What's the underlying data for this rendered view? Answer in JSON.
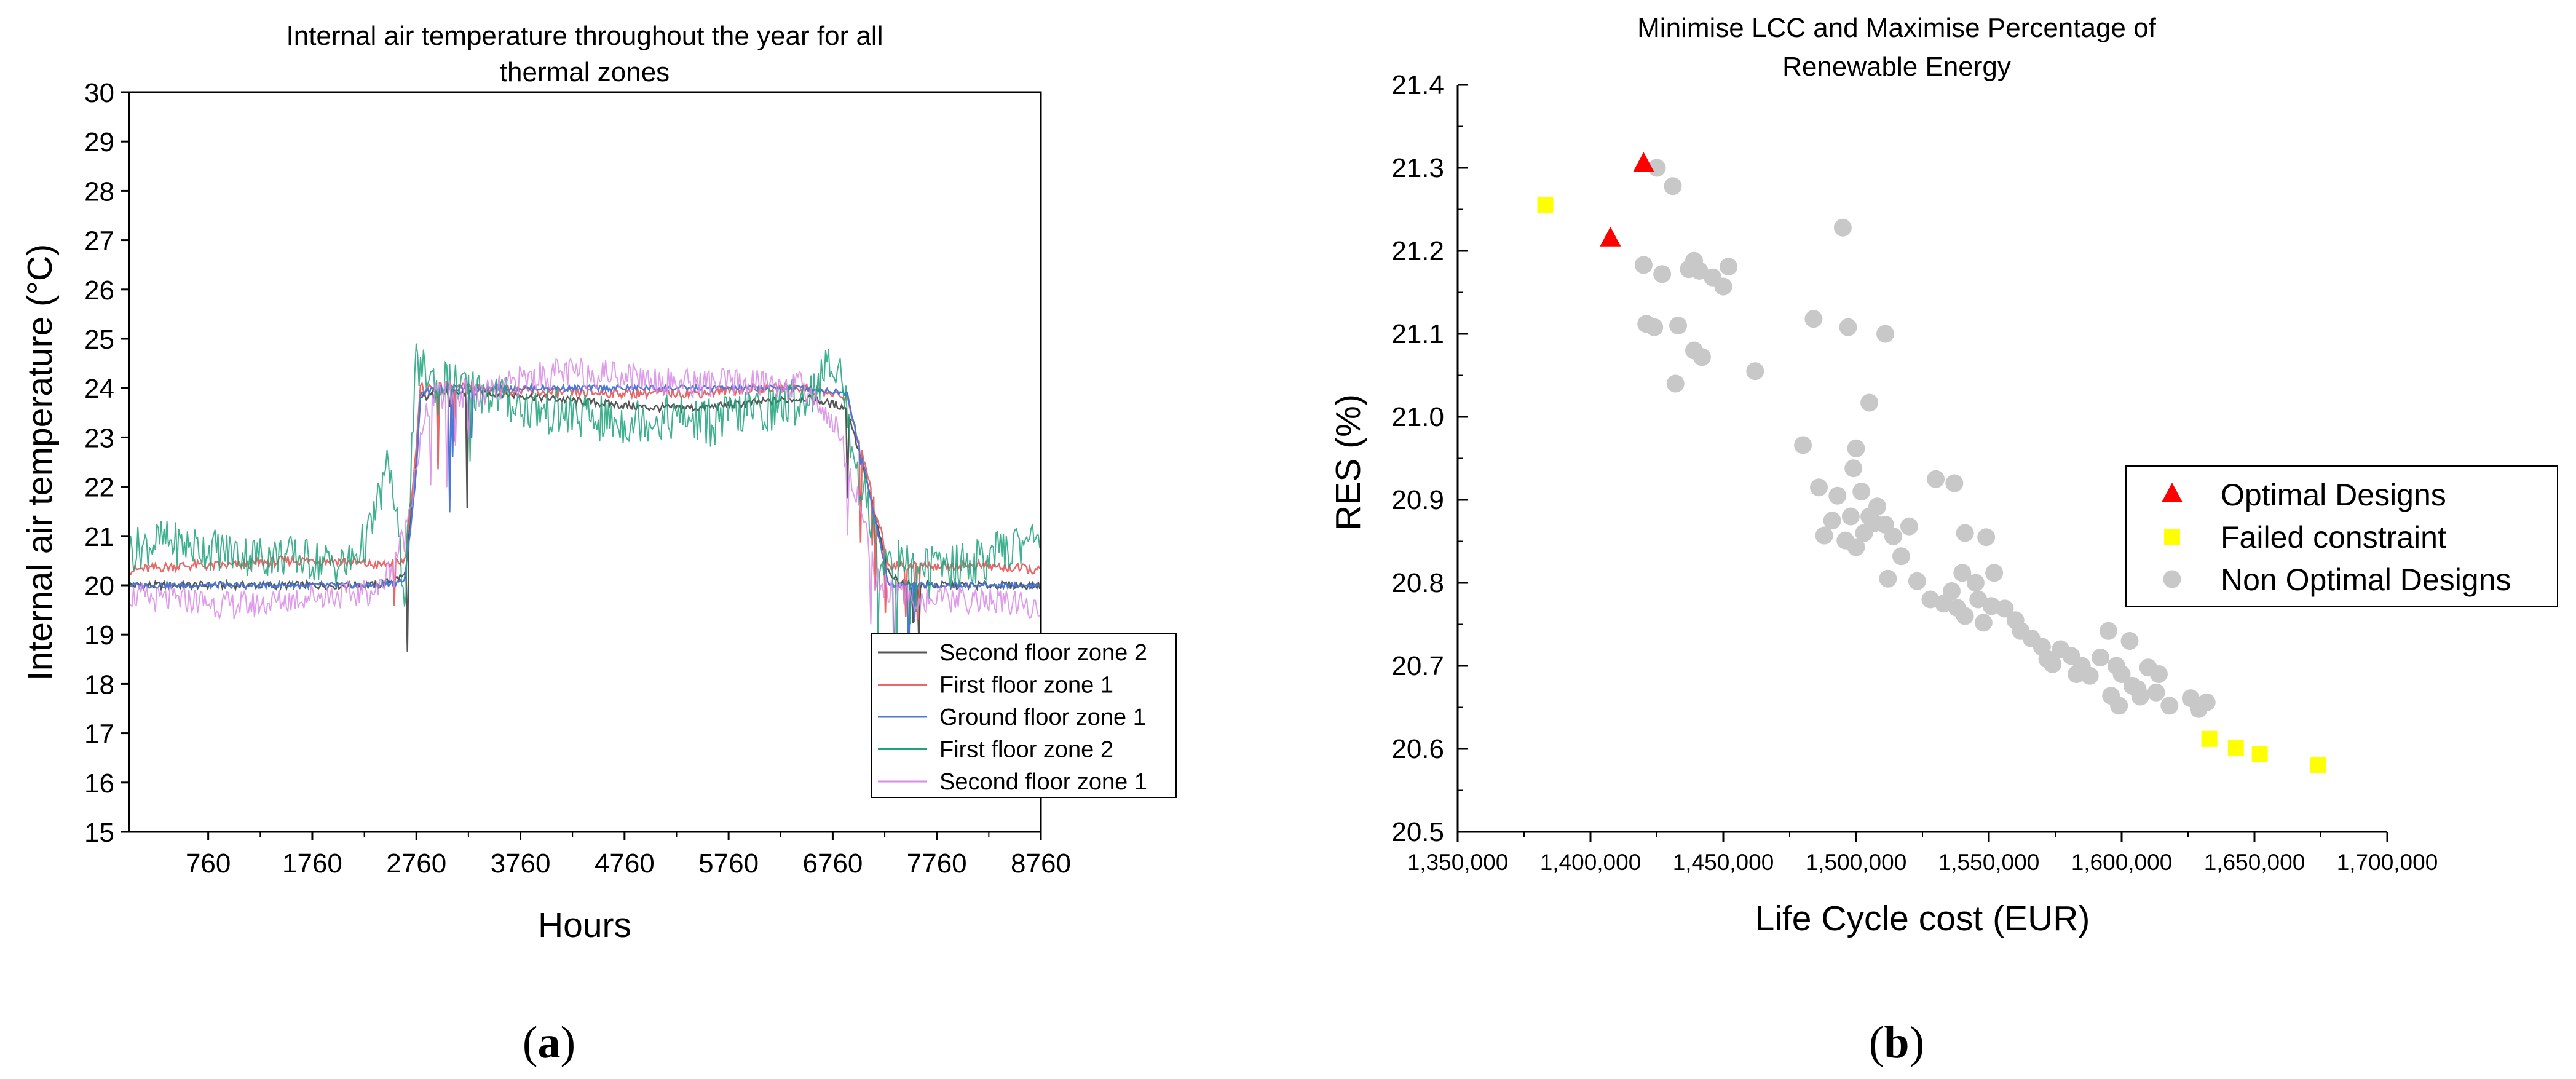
{
  "panels": {
    "a": {
      "label_open": "(",
      "label_letter": "a",
      "label_close": ")"
    },
    "b": {
      "label_open": "(",
      "label_letter": "b",
      "label_close": ")"
    }
  },
  "chart_data": [
    {
      "type": "line",
      "title_line1": "Internal air temperature throughout the year for all",
      "title_line2": "thermal zones",
      "xlabel": "Hours",
      "ylabel": "Internal air temperature (°C)",
      "xlim": [
        0,
        8760
      ],
      "ylim": [
        15,
        30
      ],
      "xticks": [
        760,
        1760,
        2760,
        3760,
        4760,
        5760,
        6760,
        7760,
        8760
      ],
      "xtick_labels": [
        "760",
        "1760",
        "2760",
        "3760",
        "4760",
        "5760",
        "6760",
        "7760",
        "8760"
      ],
      "yticks": [
        15,
        16,
        17,
        18,
        19,
        20,
        21,
        22,
        23,
        24,
        25,
        26,
        27,
        28,
        29,
        30
      ],
      "ytick_labels": [
        "15",
        "16",
        "17",
        "18",
        "19",
        "20",
        "21",
        "22",
        "23",
        "24",
        "25",
        "26",
        "27",
        "28",
        "29",
        "30"
      ],
      "legend_position": "lower-right",
      "series": [
        {
          "name": "Second floor zone 2",
          "color": "#555555",
          "x": [
            0,
            500,
            1000,
            1500,
            2000,
            2400,
            2650,
            2760,
            2800,
            3000,
            3500,
            4000,
            4500,
            5000,
            5500,
            6000,
            6500,
            6900,
            7100,
            7300,
            7500,
            7800,
            8200,
            8760
          ],
          "y": [
            20.0,
            20.0,
            20.0,
            20.0,
            20.0,
            20.0,
            20.2,
            22.5,
            23.8,
            23.9,
            23.9,
            23.8,
            23.7,
            23.6,
            23.6,
            23.7,
            23.8,
            23.6,
            22.0,
            20.2,
            20.0,
            20.0,
            20.0,
            20.0
          ]
        },
        {
          "name": "First floor zone 1",
          "color": "#e8686a",
          "x": [
            0,
            500,
            1000,
            1500,
            2000,
            2400,
            2650,
            2760,
            2800,
            3000,
            3500,
            4000,
            4500,
            5000,
            5500,
            6000,
            6500,
            6900,
            7100,
            7300,
            7500,
            7800,
            8200,
            8760
          ],
          "y": [
            20.3,
            20.4,
            20.4,
            20.5,
            20.5,
            20.4,
            20.5,
            22.8,
            24.0,
            24.0,
            24.0,
            23.9,
            23.9,
            23.9,
            23.9,
            24.0,
            24.0,
            23.8,
            22.2,
            20.4,
            20.4,
            20.4,
            20.4,
            20.3
          ]
        },
        {
          "name": "Ground floor zone 1",
          "color": "#4a78d6",
          "x": [
            0,
            500,
            1000,
            1500,
            2000,
            2400,
            2650,
            2760,
            2800,
            3000,
            3500,
            4000,
            4500,
            5000,
            5500,
            6000,
            6500,
            6900,
            7100,
            7300,
            7500,
            7800,
            8200,
            8760
          ],
          "y": [
            20.0,
            20.0,
            20.0,
            20.0,
            20.0,
            20.0,
            20.1,
            22.3,
            23.9,
            24.0,
            24.0,
            24.0,
            24.0,
            24.0,
            24.0,
            24.0,
            24.0,
            23.9,
            22.0,
            20.0,
            20.0,
            20.0,
            20.0,
            20.0
          ]
        },
        {
          "name": "First floor zone 2",
          "color": "#1fa37a",
          "x": [
            0,
            300,
            600,
            900,
            1200,
            1500,
            1800,
            2100,
            2300,
            2500,
            2650,
            2760,
            2900,
            3200,
            3500,
            3800,
            4100,
            4400,
            4700,
            5000,
            5300,
            5600,
            5900,
            6200,
            6500,
            6800,
            7000,
            7200,
            7400,
            7600,
            7900,
            8200,
            8500,
            8760
          ],
          "y": [
            20.7,
            20.9,
            20.8,
            20.7,
            20.6,
            20.6,
            20.5,
            20.4,
            21.0,
            22.5,
            19.8,
            24.5,
            24.2,
            24.0,
            23.9,
            23.6,
            23.5,
            23.4,
            23.3,
            23.4,
            23.4,
            23.3,
            23.5,
            23.6,
            23.8,
            24.6,
            22.5,
            20.6,
            20.5,
            20.4,
            20.4,
            20.5,
            20.8,
            21.0
          ]
        },
        {
          "name": "Second floor zone 1",
          "color": "#d98be8",
          "x": [
            0,
            300,
            600,
            900,
            1200,
            1500,
            1800,
            2100,
            2400,
            2650,
            2760,
            2900,
            3200,
            3500,
            3800,
            4100,
            4400,
            4700,
            5000,
            5300,
            5600,
            5900,
            6200,
            6500,
            6800,
            7000,
            7200,
            7400,
            7600,
            7900,
            8200,
            8500,
            8760
          ],
          "y": [
            19.8,
            19.7,
            19.7,
            19.6,
            19.6,
            19.7,
            19.8,
            19.8,
            19.9,
            21.0,
            22.5,
            23.8,
            23.9,
            23.9,
            24.2,
            24.3,
            24.3,
            24.3,
            24.2,
            24.1,
            24.1,
            24.1,
            24.1,
            24.0,
            23.2,
            21.8,
            20.0,
            19.8,
            19.7,
            19.7,
            19.7,
            19.6,
            19.6
          ]
        }
      ]
    },
    {
      "type": "scatter",
      "title_line1": "Minimise LCC and Maximise Percentage of",
      "title_line2": "Renewable Energy",
      "xlabel": "Life Cycle cost (EUR)",
      "ylabel": "RES (%)",
      "xlim": [
        1350000,
        1700000
      ],
      "ylim": [
        20.5,
        21.4
      ],
      "xticks": [
        1350000,
        1400000,
        1450000,
        1500000,
        1550000,
        1600000,
        1650000,
        1700000
      ],
      "xtick_labels": [
        "1,350,000",
        "1,400,000",
        "1,450,000",
        "1,500,000",
        "1,550,000",
        "1,600,000",
        "1,650,000",
        "1,700,000"
      ],
      "yticks": [
        20.5,
        20.6,
        20.7,
        20.8,
        20.9,
        21.0,
        21.1,
        21.2,
        21.3,
        21.4
      ],
      "ytick_labels": [
        "20.5",
        "20.6",
        "20.7",
        "20.8",
        "20.9",
        "21.0",
        "21.1",
        "21.2",
        "21.3",
        "21.4"
      ],
      "legend_position": "right",
      "series": [
        {
          "name": "Optimal Designs",
          "color": "#ff0000",
          "marker": "triangle",
          "x": [
            1420000,
            1407500
          ],
          "y": [
            21.305,
            21.215
          ]
        },
        {
          "name": "Failed constraint",
          "color": "#ffff00",
          "marker": "square",
          "x": [
            1383000,
            1633000,
            1643000,
            1652000,
            1674000
          ],
          "y": [
            21.255,
            20.612,
            20.601,
            20.594,
            20.58
          ]
        },
        {
          "name": "Non Optimal Designs",
          "color": "#c8c8c8",
          "marker": "circle",
          "x": [
            1425000,
            1431000,
            1420000,
            1427000,
            1437000,
            1439000,
            1441000,
            1446000,
            1450000,
            1452000,
            1421000,
            1424000,
            1433000,
            1439000,
            1442000,
            1432000,
            1462000,
            1495000,
            1484000,
            1497000,
            1511000,
            1505000,
            1480000,
            1486000,
            1491000,
            1493000,
            1498000,
            1500000,
            1499000,
            1502000,
            1505000,
            1508000,
            1511000,
            1488000,
            1496000,
            1500000,
            1503000,
            1507000,
            1512000,
            1514000,
            1517000,
            1520000,
            1530000,
            1537000,
            1541000,
            1549000,
            1552000,
            1540000,
            1545000,
            1523000,
            1528000,
            1533000,
            1536000,
            1538000,
            1541000,
            1546000,
            1548000,
            1551000,
            1556000,
            1560000,
            1562000,
            1566000,
            1570000,
            1572000,
            1577000,
            1581000,
            1585000,
            1588000,
            1592000,
            1595000,
            1598000,
            1600000,
            1603000,
            1606000,
            1610000,
            1614000,
            1618000,
            1626000,
            1629000,
            1632000,
            1596000,
            1599000,
            1604000,
            1607000,
            1613000,
            1583000,
            1574000
          ],
          "y": [
            21.3,
            21.278,
            21.183,
            21.172,
            21.178,
            21.188,
            21.176,
            21.168,
            21.157,
            21.181,
            21.112,
            21.108,
            21.11,
            21.08,
            21.072,
            21.04,
            21.055,
            21.228,
            21.118,
            21.108,
            21.1,
            21.017,
            20.966,
            20.915,
            20.875,
            20.905,
            20.88,
            20.962,
            20.938,
            20.91,
            20.88,
            20.892,
            20.87,
            20.857,
            20.851,
            20.843,
            20.86,
            20.872,
            20.805,
            20.856,
            20.832,
            20.868,
            20.925,
            20.92,
            20.86,
            20.855,
            20.812,
            20.812,
            20.8,
            20.802,
            20.78,
            20.775,
            20.79,
            20.77,
            20.76,
            20.78,
            20.752,
            20.772,
            20.769,
            20.755,
            20.742,
            20.733,
            20.723,
            20.708,
            20.72,
            20.712,
            20.7,
            20.688,
            20.71,
            20.742,
            20.7,
            20.69,
            20.73,
            20.672,
            20.698,
            20.69,
            20.652,
            20.661,
            20.648,
            20.656,
            20.664,
            20.652,
            20.676,
            20.663,
            20.668,
            20.69,
            20.702
          ]
        }
      ]
    }
  ]
}
